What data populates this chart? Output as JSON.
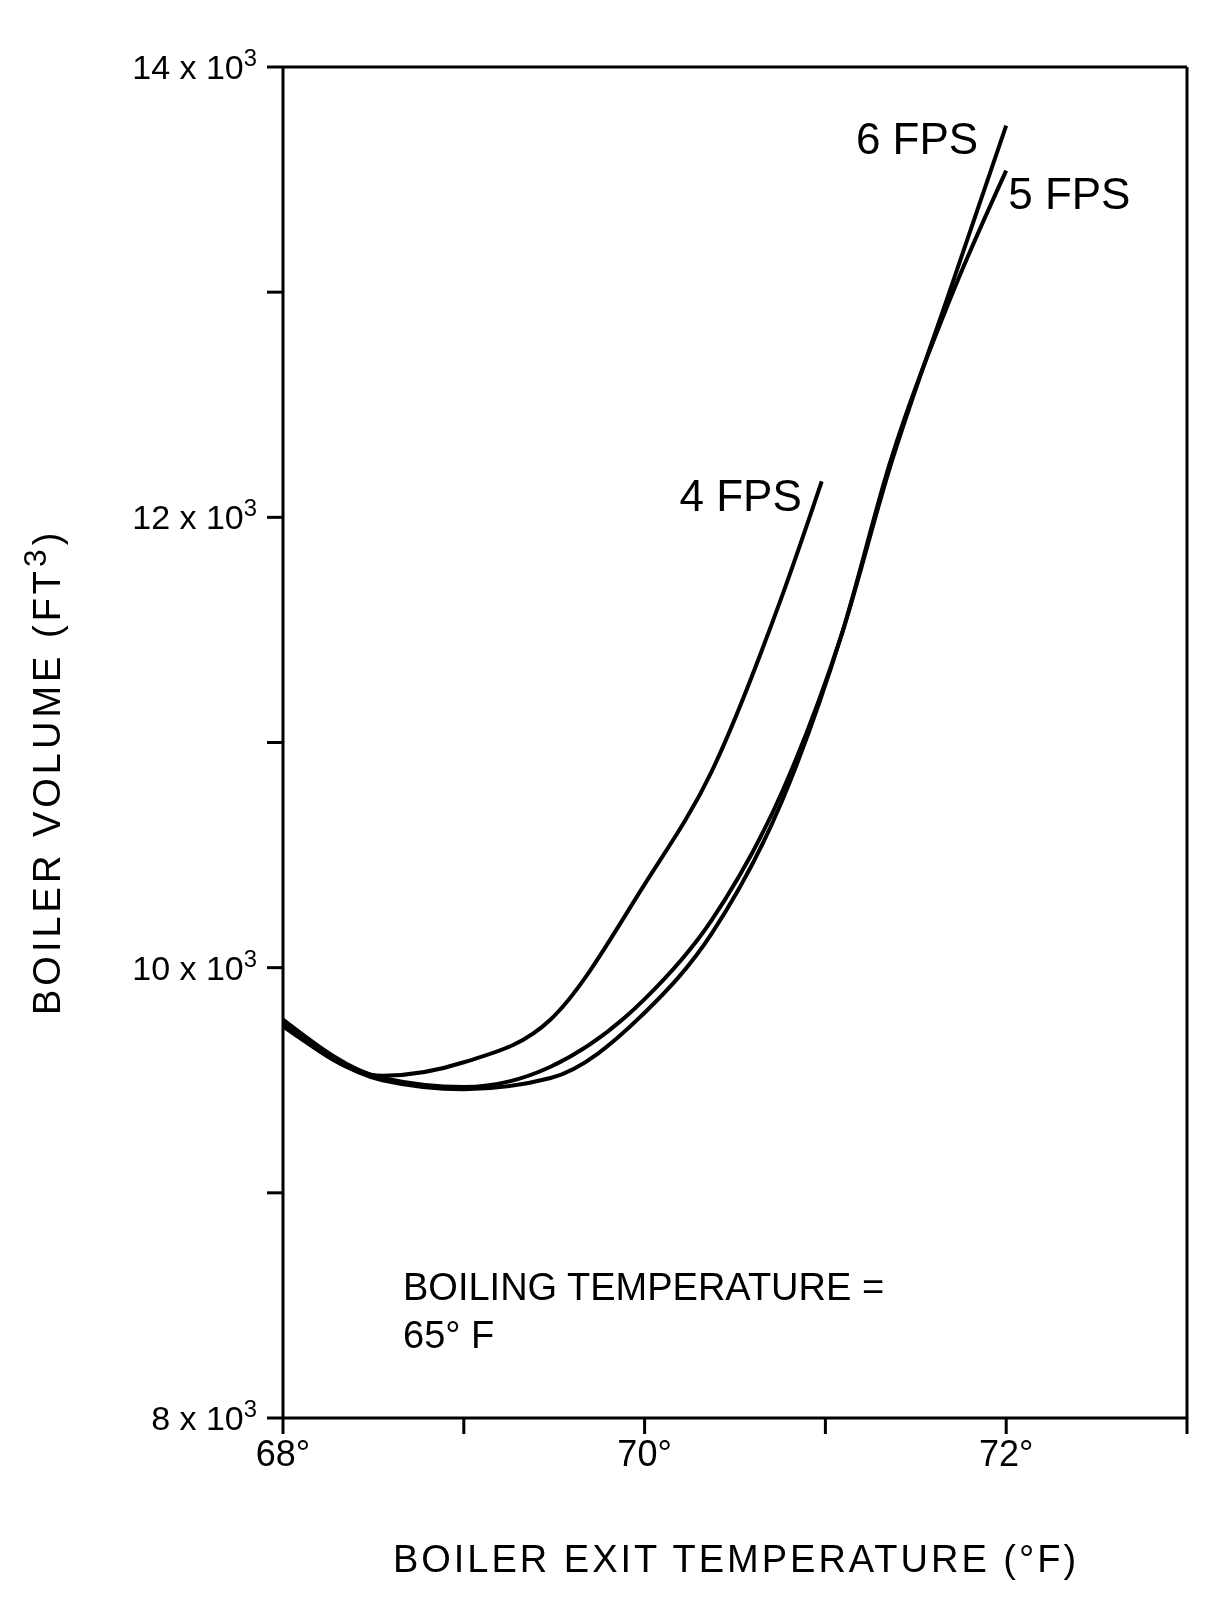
{
  "chart_data": {
    "type": "line",
    "xlabel": "BOILER EXIT TEMPERATURE (°F)",
    "ylabel": "BOILER VOLUME (FT$^{3}$)",
    "xlim": [
      68,
      73
    ],
    "ylim": [
      8000,
      14000
    ],
    "xticks": [
      {
        "value": 68,
        "label": "68°"
      },
      {
        "value": 69,
        "label": null
      },
      {
        "value": 70,
        "label": "70°"
      },
      {
        "value": 71,
        "label": null
      },
      {
        "value": 72,
        "label": "72°"
      },
      {
        "value": 73,
        "label": null
      }
    ],
    "yticks": [
      {
        "value": 8000,
        "label": "8 x 10$^{3}$"
      },
      {
        "value": 9000,
        "label": null
      },
      {
        "value": 10000,
        "label": "10 x 10$^{3}$"
      },
      {
        "value": 11000,
        "label": null
      },
      {
        "value": 12000,
        "label": "12 x 10$^{3}$"
      },
      {
        "value": 13000,
        "label": null
      },
      {
        "value": 14000,
        "label": "14 x 10$^{3}$"
      }
    ],
    "grid": false,
    "marker": "none",
    "line_style": "solid",
    "series": [
      {
        "name": "4 FPS",
        "color": "#000000",
        "x": [
          68,
          68.55,
          69,
          69.48,
          70,
          70.37,
          70.76,
          70.98
        ],
        "values": [
          9750,
          9520,
          9580,
          9770,
          10370,
          10870,
          11650,
          12160
        ]
      },
      {
        "name": "6 FPS",
        "color": "#000000",
        "x": [
          68,
          68.55,
          69,
          69.48,
          70,
          70.37,
          70.76,
          71.09,
          71.36,
          71.69,
          72
        ],
        "values": [
          9770,
          9510,
          9470,
          9560,
          9860,
          10210,
          10780,
          11480,
          12230,
          13010,
          13740
        ]
      },
      {
        "name": "5 FPS",
        "color": "#000000",
        "x": [
          68,
          68.55,
          69,
          69.48,
          70,
          70.37,
          70.76,
          71.09,
          71.36,
          71.69,
          72
        ],
        "values": [
          9740,
          9500,
          9460,
          9510,
          9800,
          10150,
          10740,
          11480,
          12250,
          12970,
          13540
        ]
      }
    ],
    "annotations": [
      "BOILING TEMPERATURE = 65° F"
    ]
  }
}
